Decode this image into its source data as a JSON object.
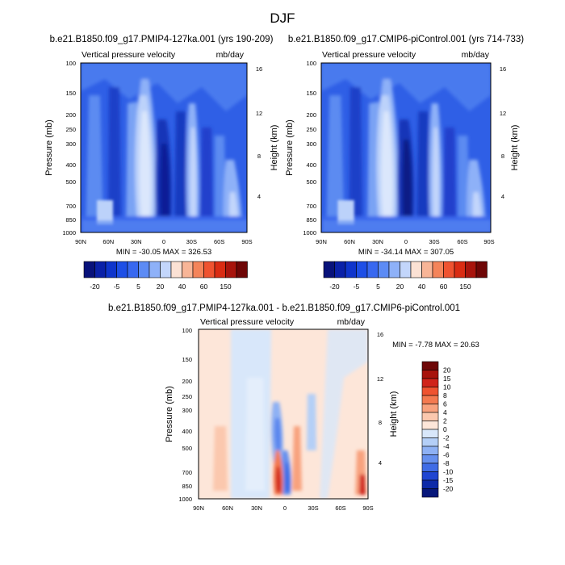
{
  "figure": {
    "title": "DJF",
    "panel_plot_label": "Vertical pressure velocity",
    "units": "mb/day",
    "left_axis_label": "Pressure (mb)",
    "right_axis_label": "Height (km)"
  },
  "chart_data": [
    {
      "type": "heatmap",
      "title": "b.e21.B1850.f09_g17.PMIP4-127ka.001 (yrs 190-209)",
      "subtitle": "Vertical pressure velocity",
      "units": "mb/day",
      "ylabel": "Pressure (mb)",
      "y2label": "Height (km)",
      "x_ticks": [
        "90N",
        "60N",
        "30N",
        "0",
        "30S",
        "60S",
        "90S"
      ],
      "y_ticks": [
        "100",
        "150",
        "200",
        "250",
        "300",
        "400",
        "500",
        "700",
        "850",
        "1000"
      ],
      "y2_ticks": [
        "16",
        "12",
        "8",
        "4"
      ],
      "ylim": [
        1000,
        100
      ],
      "y_scale": "log",
      "stats": "MIN = -30.05  MAX = 326.53",
      "min": -30.05,
      "max": 326.53,
      "colorbar_labels": [
        "-20",
        "-5",
        "5",
        "20",
        "40",
        "60",
        "150"
      ]
    },
    {
      "type": "heatmap",
      "title": "b.e21.B1850.f09_g17.CMIP6-piControl.001 (yrs 714-733)",
      "subtitle": "Vertical pressure velocity",
      "units": "mb/day",
      "ylabel": "Pressure (mb)",
      "y2label": "Height (km)",
      "x_ticks": [
        "90N",
        "60N",
        "30N",
        "0",
        "30S",
        "60S",
        "90S"
      ],
      "y_ticks": [
        "100",
        "150",
        "200",
        "250",
        "300",
        "400",
        "500",
        "700",
        "850",
        "1000"
      ],
      "y2_ticks": [
        "16",
        "12",
        "8",
        "4"
      ],
      "ylim": [
        1000,
        100
      ],
      "y_scale": "log",
      "stats": "MIN = -34.14  MAX = 307.05",
      "min": -34.14,
      "max": 307.05,
      "colorbar_labels": [
        "-20",
        "-5",
        "5",
        "20",
        "40",
        "60",
        "150"
      ]
    },
    {
      "type": "heatmap",
      "title": "b.e21.B1850.f09_g17.PMIP4-127ka.001 - b.e21.B1850.f09_g17.CMIP6-piControl.001",
      "subtitle": "Vertical pressure velocity",
      "units": "mb/day",
      "ylabel": "Pressure (mb)",
      "y2label": "Height (km)",
      "x_ticks": [
        "90N",
        "60N",
        "30N",
        "0",
        "30S",
        "60S",
        "90S"
      ],
      "y_ticks": [
        "100",
        "150",
        "200",
        "250",
        "300",
        "400",
        "500",
        "700",
        "850",
        "1000"
      ],
      "y2_ticks": [
        "16",
        "12",
        "8",
        "4"
      ],
      "ylim": [
        1000,
        100
      ],
      "y_scale": "log",
      "stats": "MIN =  -7.78  MAX =  20.63",
      "min": -7.78,
      "max": 20.63,
      "colorbar_labels": [
        "20",
        "15",
        "10",
        "8",
        "6",
        "4",
        "2",
        "0",
        "-2",
        "-4",
        "-6",
        "-8",
        "-10",
        "-15",
        "-20"
      ]
    }
  ],
  "colors": {
    "top_colorbar": [
      "#08127a",
      "#0a21a8",
      "#0f35cc",
      "#1e4fe6",
      "#3868f0",
      "#5c8bf5",
      "#8eb1f8",
      "#c3d6fb",
      "#fbe1d4",
      "#f8b597",
      "#f4845a",
      "#ef5330",
      "#d92c13",
      "#a8140c",
      "#6e0606"
    ],
    "diff_colorbar": [
      "#6e0606",
      "#a8140c",
      "#d0241a",
      "#ef5330",
      "#f47a50",
      "#f8a27e",
      "#fbc8ae",
      "#fde6d9",
      "#d8e7fa",
      "#b4cff7",
      "#8eb1f4",
      "#6690ee",
      "#3f6ce6",
      "#1f45d2",
      "#0d2aa8",
      "#07177a"
    ]
  }
}
